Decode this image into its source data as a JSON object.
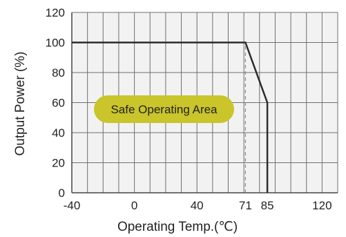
{
  "chart_data": {
    "type": "line",
    "xlabel": "Operating Temp.(℃)",
    "ylabel": "Output Power (%)",
    "x_ticks": [
      -40,
      0,
      40,
      71,
      85,
      120
    ],
    "y_ticks": [
      0,
      20,
      40,
      60,
      80,
      100,
      120
    ],
    "xlim": [
      -40,
      130
    ],
    "ylim": [
      0,
      120
    ],
    "x_grid_step": 10,
    "y_grid_step": 20,
    "grid": true,
    "series": [
      {
        "x": [
          -40,
          71,
          85,
          85
        ],
        "y": [
          100,
          100,
          60,
          0
        ]
      }
    ],
    "reference_line": {
      "x": 71,
      "y_from": 0,
      "y_to": 100,
      "style": "dashed"
    },
    "annotation": {
      "text": "Safe Operating Area",
      "color": "#c9c52a"
    },
    "colors": {
      "line": "#2b2b2b",
      "grid": "#6e6e6e",
      "area": "#f2f2f2"
    }
  }
}
